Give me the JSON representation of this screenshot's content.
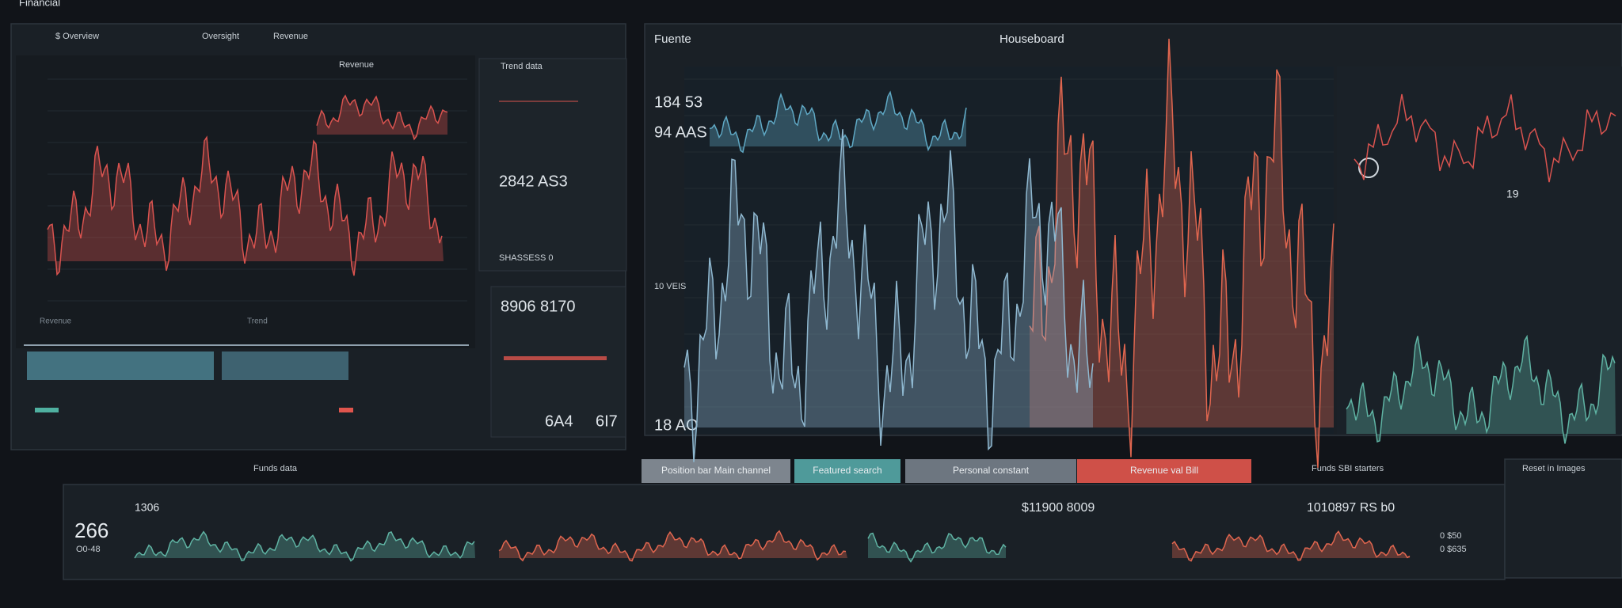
{
  "header": {
    "title": "Financial"
  },
  "left_panel": {
    "tabs": [
      "$ Overview",
      "Oversight",
      "Revenue"
    ],
    "chart_title": "Revenue",
    "footer_labels": [
      "Revenue",
      "Trend"
    ],
    "side_title": "Trend data",
    "side_values": [
      "2842 AS3",
      "SHASSESS 0"
    ],
    "lower_value": "8906 8170",
    "values": [
      "6A4",
      "6I7"
    ]
  },
  "main_panel": {
    "title": "Fuente",
    "heading": "Houseboard",
    "values": [
      "184 53",
      "94 AAS",
      "10 VEIS",
      "18 AO"
    ],
    "marker": "19"
  },
  "buttons": [
    "Position bar Main channel",
    "Featured search",
    "Personal constant",
    "Revenue val Bill"
  ],
  "bottom": {
    "title": "Funds data",
    "right_title": "Funds SBI starters",
    "corner_title": "Reset in Images",
    "values": [
      "266",
      "O0-48",
      "1306",
      "$11900 8009",
      "1010897 RS b0",
      "0 $50",
      "0 $635"
    ]
  }
}
